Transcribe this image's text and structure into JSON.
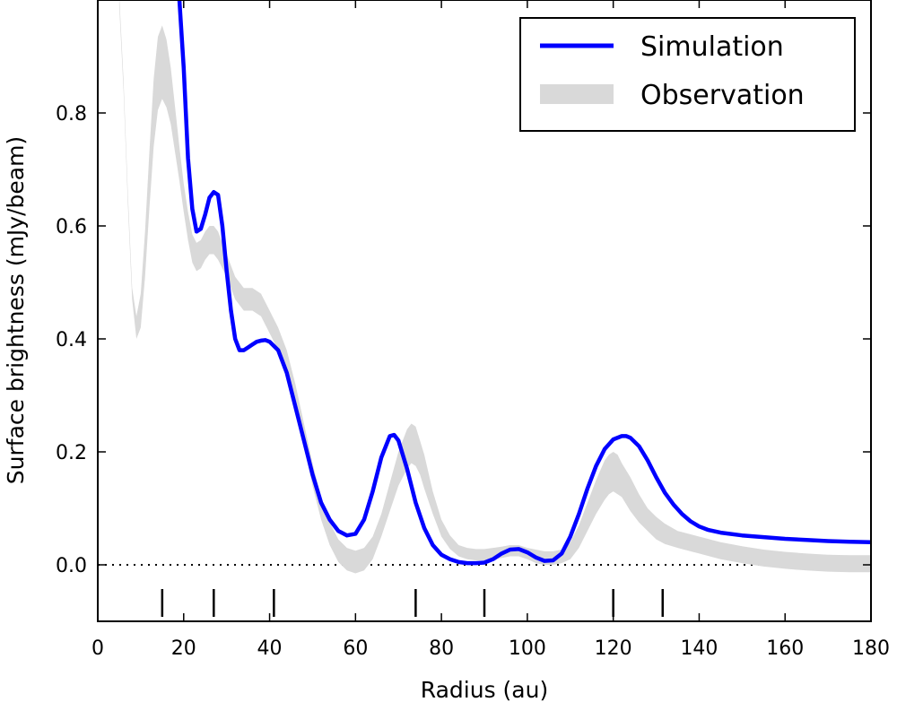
{
  "chart_data": {
    "type": "line",
    "xlabel": "Radius (au)",
    "ylabel": "Surface brightness (mJy/beam)",
    "xlim": [
      0,
      180
    ],
    "ylim": [
      -0.1,
      1.0
    ],
    "x_ticks": [
      0,
      20,
      40,
      60,
      80,
      100,
      120,
      140,
      160,
      180
    ],
    "y_ticks": [
      0.0,
      0.2,
      0.4,
      0.6,
      0.8
    ],
    "x_tick_labels": [
      "0",
      "20",
      "40",
      "60",
      "80",
      "100",
      "120",
      "140",
      "160",
      "180"
    ],
    "y_tick_labels": [
      "0.0",
      "0.2",
      "0.4",
      "0.6",
      "0.8"
    ],
    "legend_position": "top-right",
    "reference_line": {
      "y": 0.0,
      "style": "dotted"
    },
    "ring_markers_x": [
      15,
      27,
      41,
      74,
      90,
      120,
      131.5
    ],
    "series": [
      {
        "name": "Simulation",
        "color": "#0000ff",
        "x": [
          19,
          20,
          21,
          22,
          23,
          24,
          25,
          26,
          27,
          28,
          29,
          30,
          31,
          32,
          33,
          34,
          35,
          36,
          37,
          38,
          39,
          40,
          42,
          44,
          46,
          48,
          50,
          52,
          54,
          56,
          58,
          60,
          62,
          64,
          66,
          68,
          69,
          70,
          72,
          74,
          76,
          78,
          80,
          82,
          84,
          86,
          88,
          90,
          92,
          94,
          96,
          98,
          100,
          102,
          104,
          106,
          108,
          110,
          112,
          114,
          116,
          118,
          120,
          122,
          123,
          124,
          126,
          128,
          130,
          132,
          134,
          136,
          138,
          140,
          142,
          145,
          150,
          155,
          160,
          165,
          170,
          175,
          180
        ],
        "y": [
          1.0,
          0.88,
          0.72,
          0.63,
          0.59,
          0.595,
          0.62,
          0.65,
          0.66,
          0.655,
          0.6,
          0.52,
          0.45,
          0.4,
          0.38,
          0.38,
          0.385,
          0.39,
          0.395,
          0.397,
          0.398,
          0.395,
          0.38,
          0.34,
          0.28,
          0.22,
          0.16,
          0.11,
          0.08,
          0.06,
          0.052,
          0.055,
          0.08,
          0.13,
          0.19,
          0.228,
          0.23,
          0.22,
          0.17,
          0.11,
          0.065,
          0.035,
          0.018,
          0.01,
          0.005,
          0.003,
          0.003,
          0.004,
          0.01,
          0.02,
          0.027,
          0.028,
          0.022,
          0.013,
          0.007,
          0.008,
          0.02,
          0.05,
          0.09,
          0.135,
          0.175,
          0.205,
          0.222,
          0.228,
          0.228,
          0.225,
          0.21,
          0.185,
          0.155,
          0.128,
          0.107,
          0.09,
          0.077,
          0.068,
          0.062,
          0.057,
          0.052,
          0.049,
          0.046,
          0.044,
          0.042,
          0.041,
          0.04
        ]
      },
      {
        "name": "Observation",
        "color": "#d9d9d9",
        "x": [
          5,
          6,
          7,
          8,
          9,
          10,
          11,
          12,
          13,
          14,
          15,
          16,
          17,
          18,
          19,
          20,
          21,
          22,
          23,
          24,
          25,
          26,
          27,
          28,
          30,
          32,
          34,
          36,
          38,
          40,
          42,
          44,
          46,
          48,
          50,
          52,
          54,
          56,
          58,
          60,
          62,
          64,
          66,
          68,
          70,
          72,
          73,
          74,
          75,
          76,
          78,
          80,
          82,
          84,
          86,
          88,
          90,
          92,
          94,
          96,
          98,
          100,
          102,
          104,
          106,
          108,
          110,
          112,
          114,
          116,
          118,
          119,
          120,
          121,
          122,
          124,
          126,
          128,
          130,
          132,
          135,
          140,
          145,
          150,
          155,
          160,
          165,
          170,
          175,
          180
        ],
        "y": [
          1.0,
          0.85,
          0.65,
          0.48,
          0.42,
          0.45,
          0.55,
          0.68,
          0.8,
          0.87,
          0.89,
          0.87,
          0.83,
          0.77,
          0.71,
          0.65,
          0.6,
          0.56,
          0.545,
          0.55,
          0.565,
          0.575,
          0.575,
          0.565,
          0.53,
          0.49,
          0.47,
          0.47,
          0.46,
          0.43,
          0.4,
          0.36,
          0.3,
          0.23,
          0.16,
          0.1,
          0.055,
          0.025,
          0.01,
          0.005,
          0.01,
          0.03,
          0.07,
          0.12,
          0.17,
          0.205,
          0.215,
          0.21,
          0.19,
          0.165,
          0.11,
          0.065,
          0.04,
          0.025,
          0.02,
          0.018,
          0.018,
          0.02,
          0.022,
          0.025,
          0.025,
          0.02,
          0.015,
          0.012,
          0.012,
          0.015,
          0.025,
          0.05,
          0.085,
          0.12,
          0.15,
          0.16,
          0.165,
          0.16,
          0.15,
          0.125,
          0.1,
          0.08,
          0.065,
          0.055,
          0.045,
          0.035,
          0.025,
          0.018,
          0.012,
          0.008,
          0.005,
          0.003,
          0.002,
          0.002
        ],
        "band_halfwidth": [
          0.01,
          0.01,
          0.01,
          0.01,
          0.02,
          0.03,
          0.04,
          0.05,
          0.06,
          0.065,
          0.065,
          0.06,
          0.05,
          0.04,
          0.03,
          0.025,
          0.025,
          0.025,
          0.025,
          0.025,
          0.025,
          0.025,
          0.025,
          0.025,
          0.02,
          0.02,
          0.02,
          0.02,
          0.02,
          0.02,
          0.02,
          0.02,
          0.02,
          0.02,
          0.02,
          0.02,
          0.02,
          0.02,
          0.02,
          0.02,
          0.02,
          0.02,
          0.02,
          0.025,
          0.03,
          0.035,
          0.035,
          0.035,
          0.03,
          0.03,
          0.02,
          0.015,
          0.012,
          0.01,
          0.01,
          0.01,
          0.01,
          0.01,
          0.01,
          0.01,
          0.01,
          0.01,
          0.012,
          0.012,
          0.012,
          0.012,
          0.015,
          0.02,
          0.025,
          0.03,
          0.035,
          0.035,
          0.035,
          0.035,
          0.03,
          0.03,
          0.025,
          0.02,
          0.02,
          0.018,
          0.015,
          0.015,
          0.015,
          0.015,
          0.015,
          0.015,
          0.015,
          0.015,
          0.015,
          0.015
        ]
      }
    ]
  }
}
